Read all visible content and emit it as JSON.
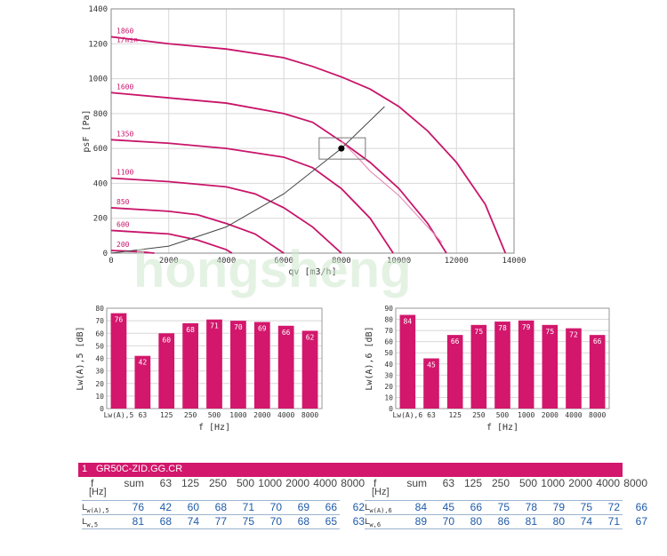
{
  "chart_data": [
    {
      "type": "line",
      "xlabel": "qv [m3/h]",
      "ylabel": "psF [Pa]",
      "xlim": [
        0,
        14000
      ],
      "ylim": [
        0,
        1400
      ],
      "x_ticks": [
        0,
        2000,
        4000,
        6000,
        8000,
        10000,
        12000,
        14000
      ],
      "y_ticks": [
        0,
        200,
        400,
        600,
        800,
        1000,
        1200,
        1400
      ],
      "grid": true,
      "unit_label": "1/min",
      "series": [
        {
          "name": "1860",
          "x": [
            0,
            2000,
            4000,
            6000,
            7000,
            8000,
            9000,
            10000,
            11000,
            12000,
            13000,
            13700
          ],
          "y": [
            1240,
            1200,
            1170,
            1120,
            1070,
            1010,
            940,
            840,
            700,
            520,
            280,
            0
          ]
        },
        {
          "name": "1600",
          "x": [
            0,
            2000,
            4000,
            6000,
            7000,
            8000,
            9000,
            10000,
            11000,
            11650
          ],
          "y": [
            920,
            890,
            860,
            800,
            750,
            640,
            520,
            370,
            170,
            0
          ]
        },
        {
          "name": "1350",
          "x": [
            0,
            2000,
            4000,
            6000,
            7000,
            8000,
            9000,
            9800
          ],
          "y": [
            650,
            630,
            600,
            550,
            490,
            370,
            200,
            0
          ]
        },
        {
          "name": "1100",
          "x": [
            0,
            2000,
            4000,
            5000,
            6000,
            7000,
            8000
          ],
          "y": [
            430,
            410,
            380,
            340,
            260,
            150,
            0
          ]
        },
        {
          "name": "850",
          "x": [
            0,
            2000,
            3000,
            4000,
            5000,
            6000
          ],
          "y": [
            260,
            240,
            220,
            170,
            110,
            0
          ]
        },
        {
          "name": "600",
          "x": [
            0,
            1000,
            2000,
            3000,
            4000,
            4200
          ],
          "y": [
            130,
            120,
            110,
            75,
            20,
            0
          ]
        },
        {
          "name": "200",
          "x": [
            0,
            500,
            1000,
            1500
          ],
          "y": [
            15,
            12,
            8,
            0
          ]
        },
        {
          "name": "operating-curve",
          "x": [
            8000,
            8500,
            9000,
            10000,
            11500
          ],
          "y": [
            640,
            560,
            470,
            330,
            60
          ]
        },
        {
          "name": "system-curve",
          "x": [
            0,
            2000,
            4000,
            6000,
            8000,
            9500
          ],
          "y": [
            0,
            40,
            150,
            340,
            600,
            840
          ]
        }
      ],
      "operating_point": {
        "x": 8000,
        "y": 600
      }
    },
    {
      "type": "bar",
      "xlabel": "f [Hz]",
      "ylabel": "Lw(A),5 [dB]",
      "ylim": [
        0,
        80
      ],
      "y_ticks": [
        0,
        10,
        20,
        30,
        40,
        50,
        60,
        70,
        80
      ],
      "categories": [
        "Lw(A),5",
        "63",
        "125",
        "250",
        "500",
        "1000",
        "2000",
        "4000",
        "8000"
      ],
      "values": [
        76,
        42,
        60,
        68,
        71,
        70,
        69,
        66,
        62
      ],
      "grid": true
    },
    {
      "type": "bar",
      "xlabel": "f [Hz]",
      "ylabel": "Lw(A),6 [dB]",
      "ylim": [
        0,
        90
      ],
      "y_ticks": [
        0,
        10,
        20,
        30,
        40,
        50,
        60,
        70,
        80,
        90
      ],
      "categories": [
        "Lw(A),6",
        "63",
        "125",
        "250",
        "500",
        "1000",
        "2000",
        "4000",
        "8000"
      ],
      "values": [
        84,
        45,
        66,
        75,
        78,
        79,
        75,
        72,
        66
      ],
      "grid": true
    }
  ],
  "colors": {
    "curve": "#c8156a",
    "curve_light": "#e58bb8",
    "bar": "#d2176c",
    "axis_text": "#333333",
    "grid": "#d8d8d8",
    "system": "#444444",
    "band": "#d2176c",
    "value_text": "#1e5aa8"
  },
  "watermark": {
    "text": "hongsheng"
  },
  "table": {
    "band_index": "1",
    "band_title": "GR50C-ZID.GG.CR",
    "f_label": "f",
    "hz_label": "[Hz]",
    "headers": [
      "sum",
      "63",
      "125",
      "250",
      "500",
      "1000",
      "2000",
      "4000",
      "8000"
    ],
    "left": {
      "row1_label": "Lw(A),5",
      "row1": [
        "76",
        "42",
        "60",
        "68",
        "71",
        "70",
        "69",
        "66",
        "62"
      ],
      "row2_label": "Lw,5",
      "row2": [
        "81",
        "68",
        "74",
        "77",
        "75",
        "70",
        "68",
        "65",
        "63"
      ]
    },
    "right": {
      "row1_label": "Lw(A),6",
      "row1": [
        "84",
        "45",
        "66",
        "75",
        "78",
        "79",
        "75",
        "72",
        "66"
      ],
      "row2_label": "Lw,6",
      "row2": [
        "89",
        "70",
        "80",
        "86",
        "81",
        "80",
        "74",
        "71",
        "67"
      ]
    }
  }
}
